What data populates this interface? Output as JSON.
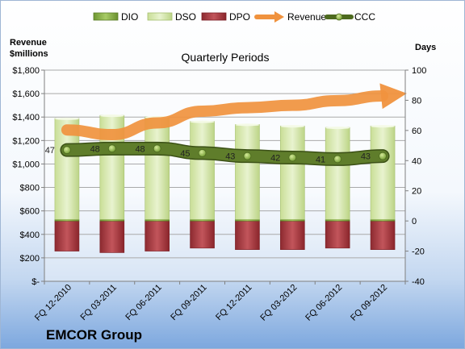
{
  "chart_data": {
    "type": "bar",
    "title": "Quarterly Periods",
    "company": "EMCOR Group",
    "left_axis": {
      "title_lines": [
        "Revenue",
        "$millions"
      ],
      "range": [
        0,
        1800
      ],
      "ticks": [
        0,
        200,
        400,
        600,
        800,
        1000,
        1200,
        1400,
        1600,
        1800
      ],
      "tick_labels": [
        "$-",
        "$200",
        "$400",
        "$600",
        "$800",
        "$1,000",
        "$1,200",
        "$1,400",
        "$1,600",
        "$1,800"
      ]
    },
    "right_axis": {
      "title": "Days",
      "range": [
        -40,
        100
      ],
      "ticks": [
        -40,
        -20,
        0,
        20,
        40,
        60,
        80,
        100
      ],
      "tick_labels": [
        "-40",
        "-20",
        "0",
        "20",
        "40",
        "60",
        "80",
        "100"
      ]
    },
    "categories": [
      "FQ 12-2010",
      "FQ 03-2011",
      "FQ 06-2011",
      "FQ 09-2011",
      "FQ 12-2011",
      "FQ 03-2012",
      "FQ 06-2012",
      "FQ 09-2012"
    ],
    "series": [
      {
        "name": "DIO",
        "kind": "bar",
        "color": "#7aa33a",
        "values": [
          1,
          1,
          1,
          1,
          1,
          1,
          1,
          1
        ]
      },
      {
        "name": "DSO",
        "kind": "bar",
        "color": "#d7e8b0",
        "values": [
          67,
          69,
          68,
          65,
          63,
          62,
          61,
          62
        ]
      },
      {
        "name": "DPO",
        "kind": "bar",
        "color": "#a8333a",
        "values": [
          -20,
          -21,
          -20,
          -18,
          -19,
          -19,
          -18,
          -19
        ]
      },
      {
        "name": "Revenue",
        "kind": "line",
        "color": "#f0923e",
        "values": [
          1290,
          1250,
          1350,
          1450,
          1480,
          1500,
          1540,
          1580
        ]
      },
      {
        "name": "CCC",
        "kind": "line",
        "color": "#5e7a2b",
        "values": [
          47,
          48,
          48,
          45,
          43,
          42,
          41,
          43
        ]
      }
    ],
    "data_labels": [
      "47",
      "48",
      "48",
      "45",
      "43",
      "42",
      "41",
      "43"
    ],
    "legend_position": "top"
  }
}
